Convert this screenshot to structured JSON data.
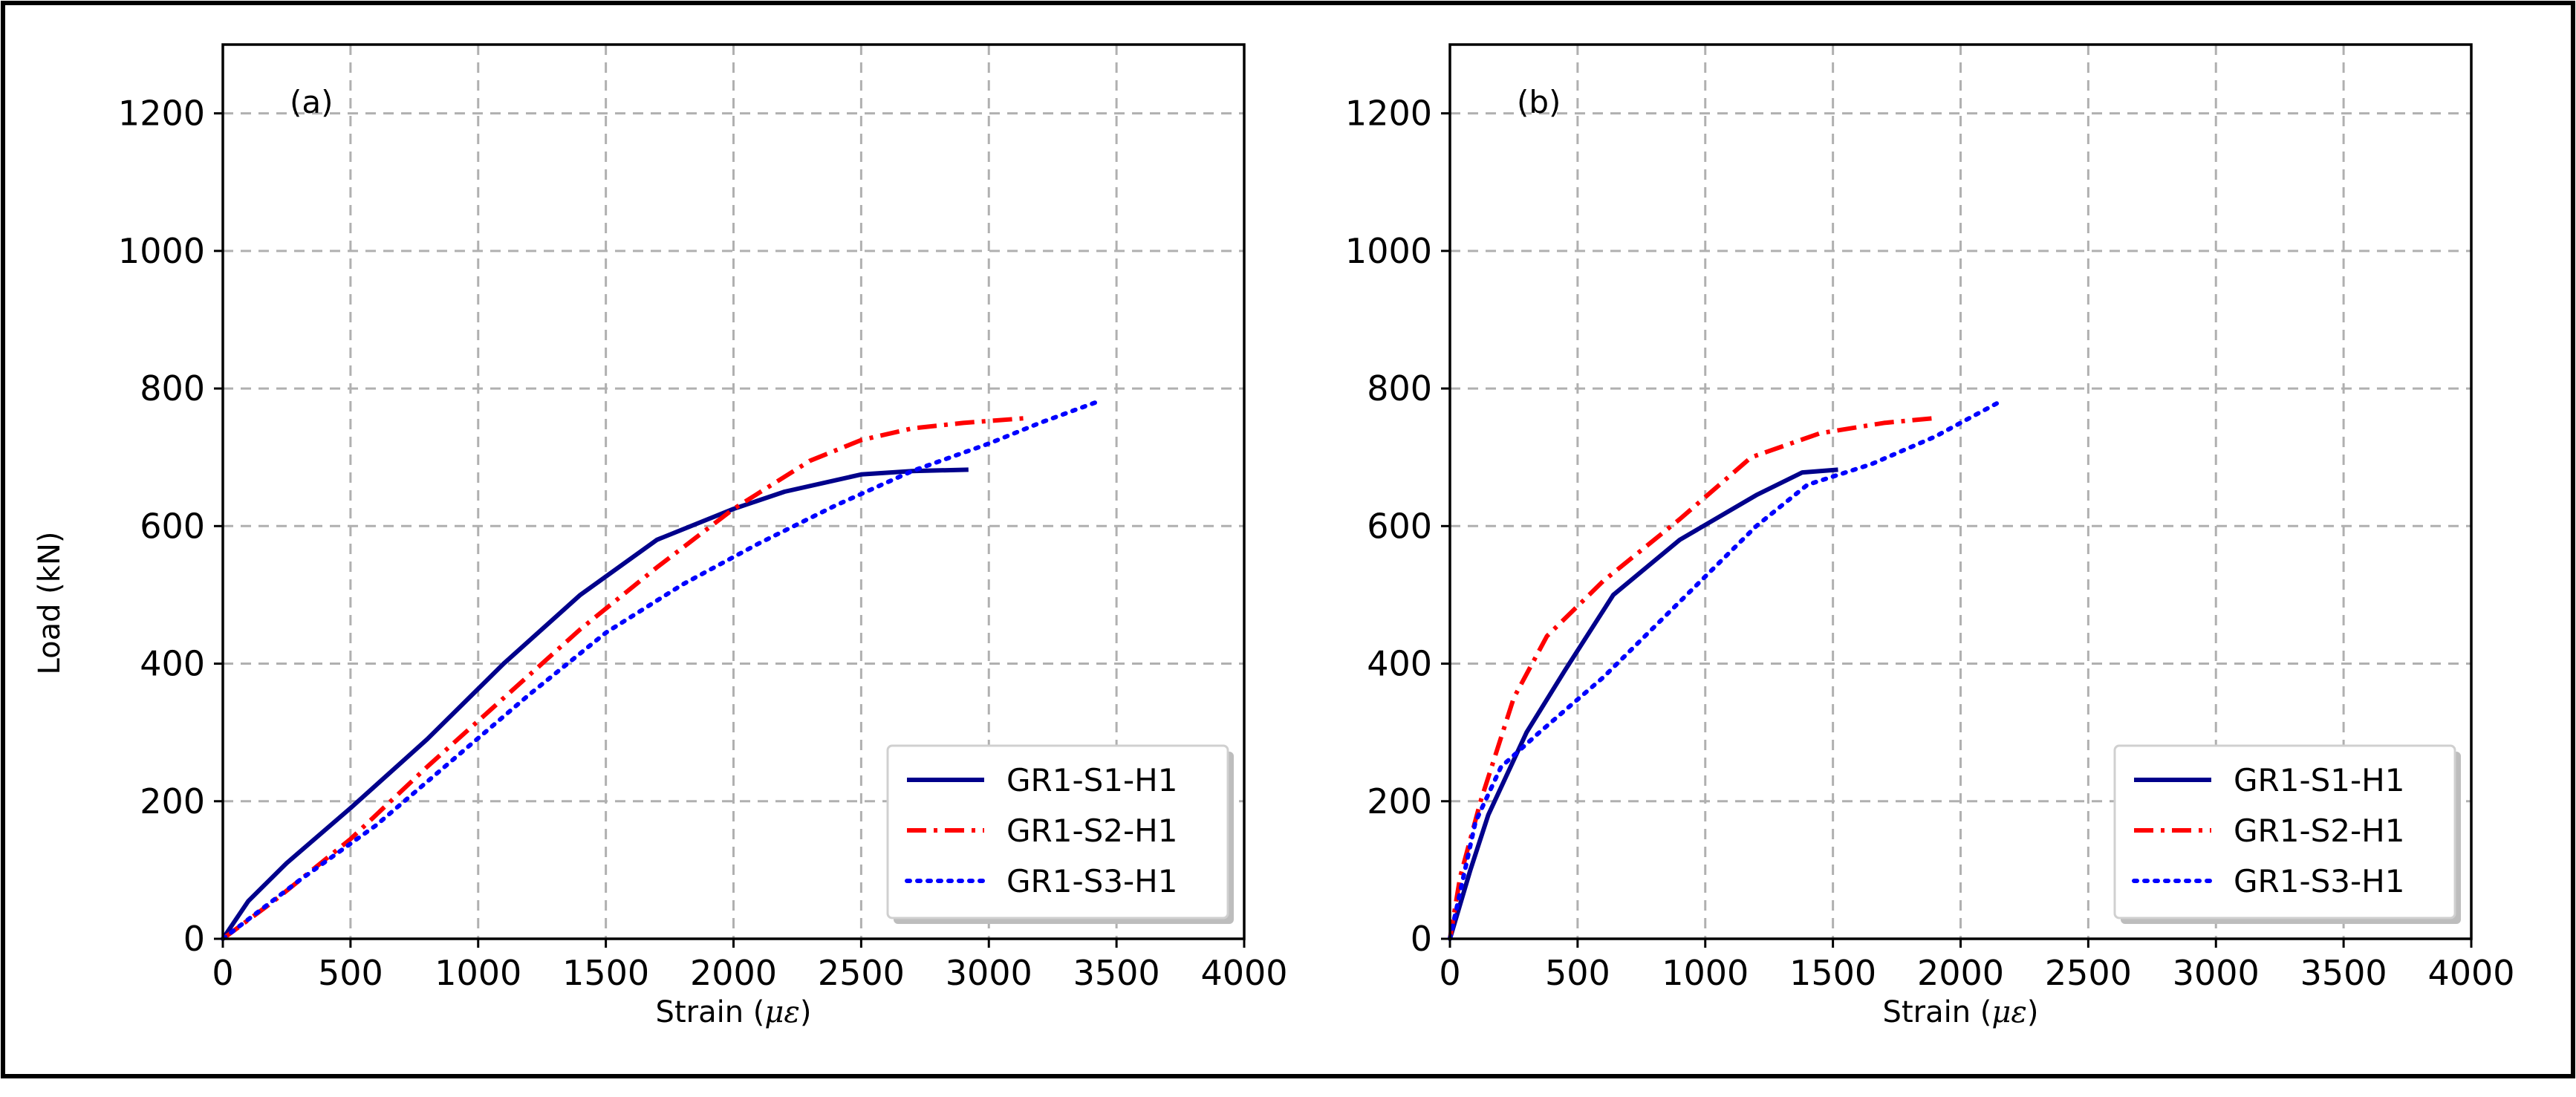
{
  "chart_data": [
    {
      "type": "line",
      "panel_label": "(a)",
      "xlabel": "Strain (με)",
      "ylabel": "Load (kN)",
      "xlim": [
        0,
        4000
      ],
      "ylim": [
        0,
        1300
      ],
      "xticks": [
        0,
        500,
        1000,
        1500,
        2000,
        2500,
        3000,
        3500,
        4000
      ],
      "yticks": [
        0,
        200,
        400,
        600,
        800,
        1000,
        1200
      ],
      "grid": true,
      "legend_position": "bottom-right",
      "series": [
        {
          "name": "GR1-S1-H1",
          "color": "#00008b",
          "style": "solid",
          "x": [
            0,
            100,
            250,
            500,
            800,
            1100,
            1400,
            1700,
            2000,
            2200,
            2500,
            2700,
            2920
          ],
          "y": [
            0,
            55,
            110,
            190,
            290,
            400,
            500,
            580,
            625,
            650,
            675,
            680,
            682
          ]
        },
        {
          "name": "GR1-S2-H1",
          "color": "#ff0000",
          "style": "dashdot",
          "x": [
            0,
            200,
            500,
            800,
            1100,
            1400,
            1700,
            2000,
            2300,
            2500,
            2700,
            2900,
            3150
          ],
          "y": [
            0,
            55,
            145,
            250,
            350,
            450,
            540,
            625,
            695,
            725,
            742,
            750,
            757
          ]
        },
        {
          "name": "GR1-S3-H1",
          "color": "#0000ff",
          "style": "dotted",
          "x": [
            0,
            300,
            600,
            900,
            1200,
            1500,
            1800,
            2100,
            2400,
            2700,
            3000,
            3200,
            3420
          ],
          "y": [
            0,
            85,
            165,
            260,
            355,
            445,
            515,
            575,
            630,
            680,
            720,
            750,
            780
          ]
        }
      ]
    },
    {
      "type": "line",
      "panel_label": "(b)",
      "xlabel": "Strain (με)",
      "ylabel": "",
      "xlim": [
        0,
        4000
      ],
      "ylim": [
        0,
        1300
      ],
      "xticks": [
        0,
        500,
        1000,
        1500,
        2000,
        2500,
        3000,
        3500,
        4000
      ],
      "yticks": [
        0,
        200,
        400,
        600,
        800,
        1000,
        1200
      ],
      "grid": true,
      "legend_position": "bottom-right",
      "series": [
        {
          "name": "GR1-S1-H1",
          "color": "#00008b",
          "style": "solid",
          "x": [
            0,
            80,
            150,
            300,
            450,
            640,
            900,
            1200,
            1380,
            1520
          ],
          "y": [
            0,
            100,
            180,
            300,
            390,
            500,
            580,
            645,
            678,
            682
          ]
        },
        {
          "name": "GR1-S2-H1",
          "color": "#ff0000",
          "style": "dashdot",
          "x": [
            0,
            40,
            120,
            250,
            380,
            600,
            900,
            1180,
            1450,
            1700,
            1900
          ],
          "y": [
            0,
            90,
            200,
            350,
            440,
            520,
            610,
            700,
            735,
            750,
            757
          ]
        },
        {
          "name": "GR1-S3-H1",
          "color": "#0000ff",
          "style": "dotted",
          "x": [
            0,
            100,
            200,
            350,
            600,
            900,
            1200,
            1400,
            1650,
            1900,
            2150
          ],
          "y": [
            0,
            170,
            250,
            300,
            380,
            490,
            600,
            660,
            690,
            730,
            780
          ]
        }
      ]
    }
  ]
}
